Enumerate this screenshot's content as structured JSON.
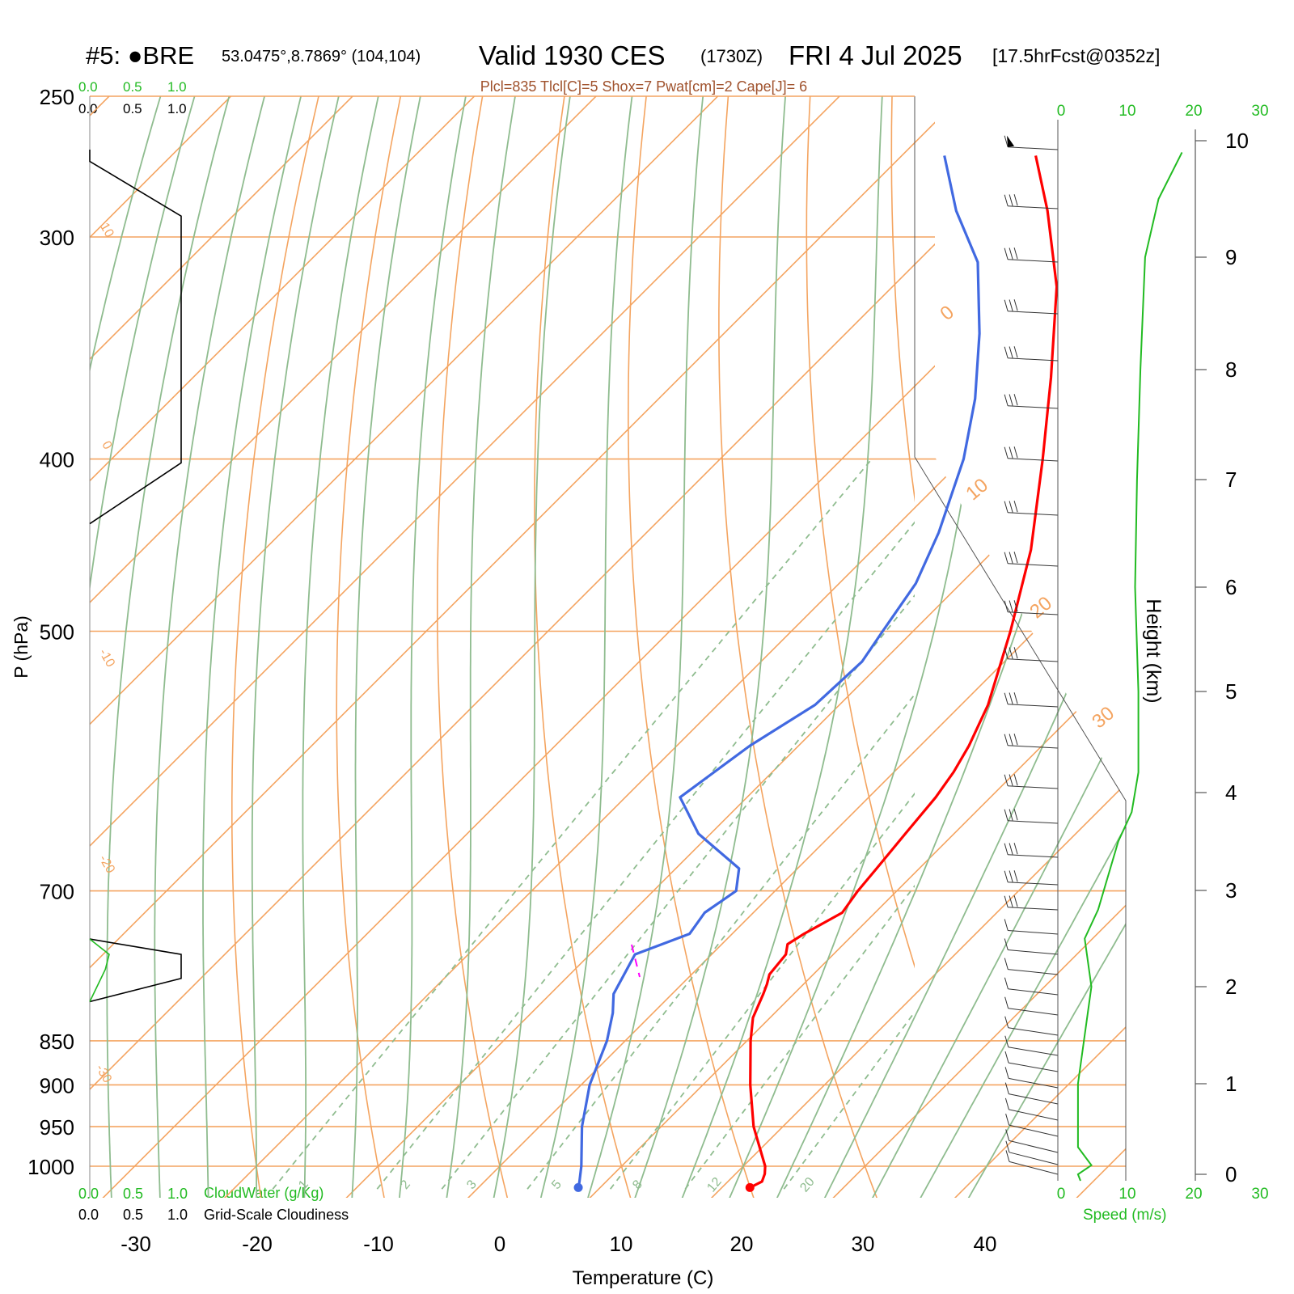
{
  "header": {
    "station": "#5: ●BRE",
    "coords": "53.0475°,8.7869° (104,104)",
    "valid": "Valid 1930 CES",
    "zulu": "(1730Z)",
    "date": "FRI 4 Jul 2025",
    "forecast": "[17.5hrFcst@0352z]",
    "params": "Plcl=835 Tlcl[C]=5 Shox=7 Pwat[cm]=2 Cape[J]= 6"
  },
  "cloud_scale": {
    "top_green": [
      "0.0",
      "0.5",
      "1.0"
    ],
    "top_black": [
      "0.0",
      "0.5",
      "1.0"
    ],
    "bottom_green": [
      "0.0",
      "0.5",
      "1.0"
    ],
    "bottom_black": [
      "0.0",
      "0.5",
      "1.0"
    ],
    "cloudwater_label": "CloudWater (g/Kg)",
    "cloudiness_label": "Grid-Scale Cloudiness"
  },
  "wind_scale": {
    "ticks": [
      "0",
      "10",
      "20",
      "30"
    ],
    "label": "Speed (m/s)"
  },
  "chart_data": {
    "type": "line",
    "xlabel": "Temperature (C)",
    "ylabel": "P (hPa)",
    "y2label": "Height (km)",
    "x_ticks": [
      -30,
      -20,
      -10,
      0,
      10,
      20,
      30,
      40
    ],
    "p_ticks": [
      250,
      300,
      400,
      500,
      700,
      850,
      900,
      950,
      1000
    ],
    "height_ticks": [
      0,
      1,
      2,
      3,
      4,
      5,
      6,
      7,
      8,
      9,
      10
    ],
    "xlim": [
      -34,
      36
    ],
    "plim": [
      250,
      1050
    ],
    "log_pressure": true,
    "isotherm_labels": [
      "10",
      "0",
      "-10",
      "-20",
      "-30",
      "0",
      "10",
      "20",
      "30"
    ],
    "mixing_ratio_labels": [
      "1",
      "2",
      "3",
      "5",
      "8",
      "12",
      "20"
    ],
    "series": [
      {
        "name": "Temperature",
        "color": "#ff0000",
        "points": [
          [
            1028,
            22.3
          ],
          [
            1020,
            22.8
          ],
          [
            1010,
            22.4
          ],
          [
            1000,
            21.8
          ],
          [
            950,
            17.6
          ],
          [
            900,
            13.9
          ],
          [
            850,
            10.3
          ],
          [
            825,
            8.6
          ],
          [
            800,
            7.5
          ],
          [
            790,
            7.0
          ],
          [
            780,
            6.4
          ],
          [
            760,
            6.1
          ],
          [
            750,
            5.4
          ],
          [
            740,
            5.9
          ],
          [
            720,
            7.3
          ],
          [
            700,
            6.8
          ],
          [
            680,
            6.5
          ],
          [
            650,
            6.0
          ],
          [
            620,
            5.5
          ],
          [
            600,
            4.9
          ],
          [
            580,
            4.0
          ],
          [
            550,
            2.2
          ],
          [
            500,
            -2.0
          ],
          [
            450,
            -7.0
          ],
          [
            400,
            -13.5
          ],
          [
            360,
            -19.5
          ],
          [
            320,
            -26.5
          ],
          [
            290,
            -33.5
          ],
          [
            270,
            -39.0
          ]
        ]
      },
      {
        "name": "Dewpoint",
        "color": "#4169e1",
        "points": [
          [
            1028,
            8.2
          ],
          [
            1020,
            7.8
          ],
          [
            1000,
            6.7
          ],
          [
            950,
            3.5
          ],
          [
            900,
            0.7
          ],
          [
            850,
            -1.5
          ],
          [
            820,
            -3.3
          ],
          [
            800,
            -4.8
          ],
          [
            760,
            -6.3
          ],
          [
            740,
            -3.5
          ],
          [
            720,
            -4.0
          ],
          [
            700,
            -3.2
          ],
          [
            680,
            -4.8
          ],
          [
            650,
            -11.0
          ],
          [
            620,
            -15.5
          ],
          [
            580,
            -14.0
          ],
          [
            550,
            -12.0
          ],
          [
            520,
            -11.7
          ],
          [
            500,
            -12.5
          ],
          [
            470,
            -13.7
          ],
          [
            440,
            -16.0
          ],
          [
            400,
            -20.0
          ],
          [
            370,
            -24.0
          ],
          [
            340,
            -29.0
          ],
          [
            310,
            -35.0
          ],
          [
            290,
            -41.0
          ],
          [
            270,
            -46.5
          ]
        ]
      }
    ],
    "wind_speed_profile_ms": [
      [
        0.0,
        3
      ],
      [
        0.1,
        5
      ],
      [
        0.3,
        3
      ],
      [
        1.0,
        3
      ],
      [
        1.5,
        4
      ],
      [
        2.0,
        5
      ],
      [
        2.5,
        4
      ],
      [
        2.8,
        6
      ],
      [
        3.5,
        9
      ],
      [
        3.8,
        11
      ],
      [
        4.2,
        12
      ],
      [
        5.0,
        12
      ],
      [
        6.0,
        11.5
      ],
      [
        7.0,
        11.8
      ],
      [
        8.0,
        12.3
      ],
      [
        9.0,
        13
      ],
      [
        9.5,
        15
      ],
      [
        9.9,
        18.5
      ]
    ],
    "cloudiness_profile": [
      [
        250,
        0
      ],
      [
        272,
        0
      ],
      [
        292,
        1.0
      ],
      [
        402,
        1.0
      ],
      [
        435,
        0
      ],
      [
        745,
        0
      ],
      [
        760,
        1.0
      ],
      [
        784,
        1.0
      ],
      [
        808,
        0
      ]
    ],
    "cloudwater_profile": [
      [
        745,
        0
      ],
      [
        760,
        0.25
      ],
      [
        775,
        0.2
      ],
      [
        808,
        0
      ]
    ]
  }
}
